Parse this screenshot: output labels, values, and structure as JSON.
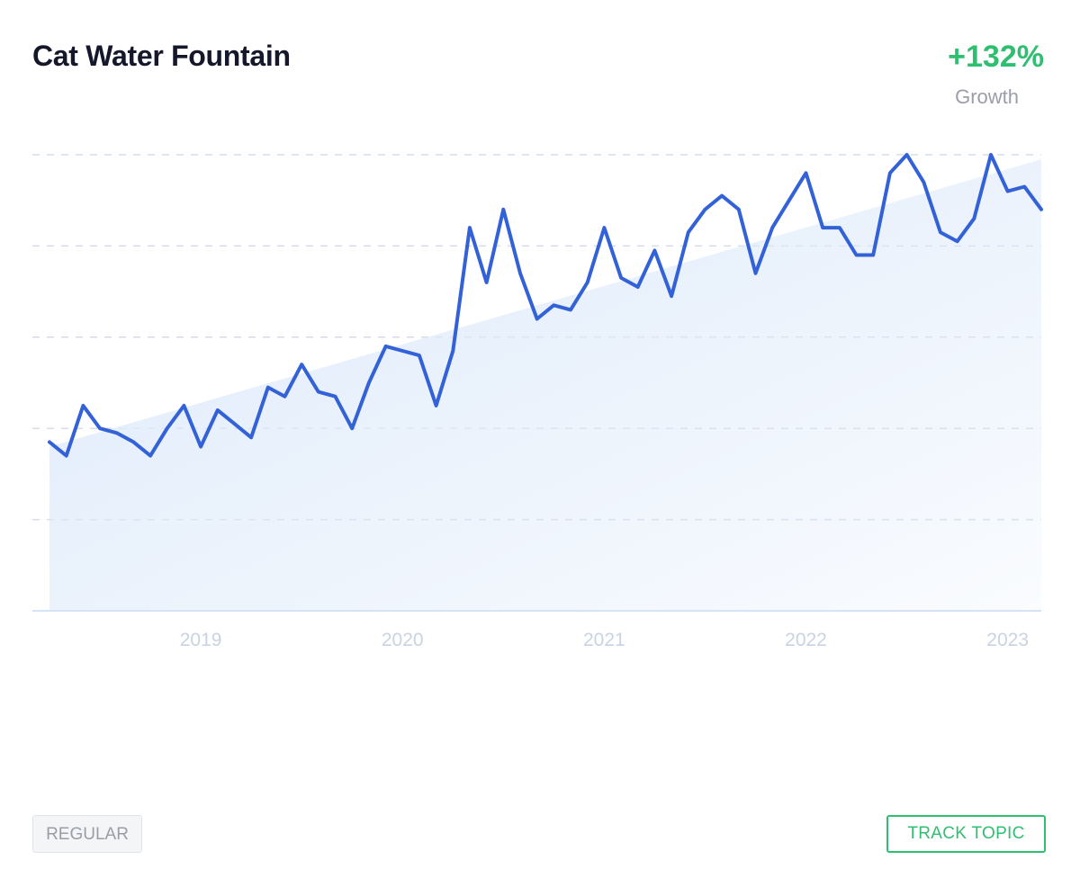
{
  "header": {
    "title": "Cat Water Fountain",
    "growth_value": "+132%",
    "growth_label": "Growth"
  },
  "footer": {
    "tag_label": "REGULAR",
    "track_label": "TRACK TOPIC"
  },
  "colors": {
    "line": "#3361d8",
    "growth_green": "#2fbf71",
    "trend_fill": "#dce9fa",
    "grid": "#d6dde8",
    "tick_text": "#c9d3e3"
  },
  "chart_data": {
    "type": "line",
    "title": "",
    "xlabel": "",
    "ylabel": "",
    "x_ticks": [
      "2019",
      "2020",
      "2021",
      "2022",
      "2023"
    ],
    "x_range": [
      "2018-04",
      "2023-03"
    ],
    "ylim": [
      0,
      100
    ],
    "y_tick_labels_shown": false,
    "grid": "horizontal-dashed",
    "series": [
      {
        "x": [
          "2018-04",
          "2018-05",
          "2018-06",
          "2018-07",
          "2018-08",
          "2018-09",
          "2018-10",
          "2018-11",
          "2018-12",
          "2019-01",
          "2019-02",
          "2019-03",
          "2019-04",
          "2019-05",
          "2019-06",
          "2019-07",
          "2019-08",
          "2019-09",
          "2019-10",
          "2019-11",
          "2019-12",
          "2020-01",
          "2020-02",
          "2020-03",
          "2020-04",
          "2020-05",
          "2020-06",
          "2020-07",
          "2020-08",
          "2020-09",
          "2020-10",
          "2020-11",
          "2020-12",
          "2021-01",
          "2021-02",
          "2021-03",
          "2021-04",
          "2021-05",
          "2021-06",
          "2021-07",
          "2021-08",
          "2021-09",
          "2021-10",
          "2021-11",
          "2021-12",
          "2022-01",
          "2022-02",
          "2022-03",
          "2022-04",
          "2022-05",
          "2022-06",
          "2022-07",
          "2022-08",
          "2022-09",
          "2022-10",
          "2022-11",
          "2022-12",
          "2023-01",
          "2023-02",
          "2023-03"
        ],
        "values": [
          37,
          34,
          45,
          40,
          39,
          37,
          34,
          40,
          45,
          36,
          44,
          41,
          38,
          49,
          47,
          54,
          48,
          47,
          40,
          50,
          58,
          57,
          56,
          45,
          57,
          84,
          72,
          88,
          74,
          64,
          67,
          66,
          72,
          84,
          73,
          71,
          79,
          69,
          83,
          88,
          91,
          88,
          74,
          84,
          90,
          96,
          84,
          84,
          78,
          78,
          96,
          100,
          94,
          83,
          81,
          86,
          100,
          92,
          93,
          88
        ]
      }
    ],
    "trend": {
      "start": 36,
      "end": 99
    }
  }
}
